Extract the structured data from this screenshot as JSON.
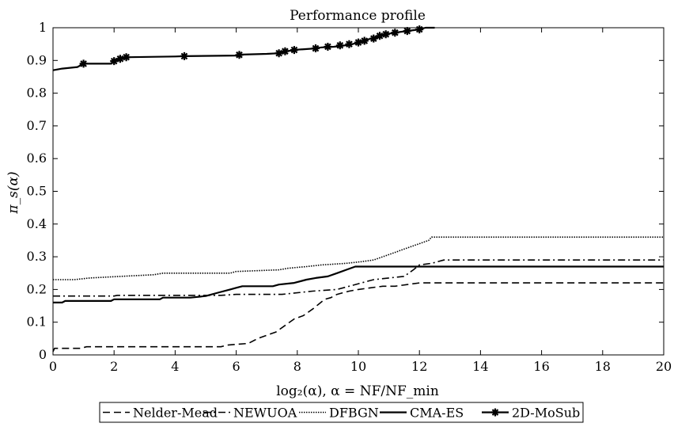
{
  "chart_data": {
    "type": "line",
    "title": "Performance profile",
    "ylabel": "π_s(α)",
    "xlabel": "log₂(α),    α = NF/NF_min",
    "xlim": [
      0,
      20
    ],
    "ylim": [
      0,
      1
    ],
    "xticks": [
      0,
      2,
      4,
      6,
      8,
      10,
      12,
      14,
      16,
      18,
      20
    ],
    "yticks": [
      0,
      0.1,
      0.2,
      0.3,
      0.4,
      0.5,
      0.6,
      0.7,
      0.8,
      0.9,
      1
    ],
    "grid": false,
    "legend": {
      "position": "bottom-outside",
      "orientation": "horizontal"
    },
    "series": [
      {
        "name": "Nelder-Mead",
        "style": "dashed",
        "points": [
          [
            0,
            0.01
          ],
          [
            0.05,
            0.02
          ],
          [
            0.9,
            0.02
          ],
          [
            1.1,
            0.025
          ],
          [
            3.5,
            0.025
          ],
          [
            5.5,
            0.025
          ],
          [
            5.7,
            0.03
          ],
          [
            6.4,
            0.035
          ],
          [
            6.7,
            0.05
          ],
          [
            7.0,
            0.06
          ],
          [
            7.3,
            0.07
          ],
          [
            7.6,
            0.09
          ],
          [
            7.9,
            0.11
          ],
          [
            8.2,
            0.12
          ],
          [
            8.5,
            0.14
          ],
          [
            8.7,
            0.155
          ],
          [
            8.9,
            0.17
          ],
          [
            9.1,
            0.175
          ],
          [
            9.3,
            0.185
          ],
          [
            9.5,
            0.19
          ],
          [
            9.7,
            0.195
          ],
          [
            10.0,
            0.2
          ],
          [
            10.4,
            0.205
          ],
          [
            10.8,
            0.21
          ],
          [
            11.2,
            0.21
          ],
          [
            11.6,
            0.215
          ],
          [
            12.0,
            0.22
          ],
          [
            20,
            0.22
          ]
        ]
      },
      {
        "name": "NEWUOA",
        "style": "dashdot",
        "points": [
          [
            0,
            0.18
          ],
          [
            2.0,
            0.18
          ],
          [
            2.1,
            0.182
          ],
          [
            5.5,
            0.182
          ],
          [
            6.0,
            0.185
          ],
          [
            7.5,
            0.185
          ],
          [
            8.5,
            0.195
          ],
          [
            9.3,
            0.2
          ],
          [
            9.7,
            0.21
          ],
          [
            10.1,
            0.22
          ],
          [
            10.5,
            0.23
          ],
          [
            11.0,
            0.235
          ],
          [
            11.5,
            0.24
          ],
          [
            11.8,
            0.26
          ],
          [
            12.0,
            0.275
          ],
          [
            12.4,
            0.28
          ],
          [
            12.8,
            0.29
          ],
          [
            20,
            0.29
          ]
        ]
      },
      {
        "name": "DFBGN",
        "style": "dotted",
        "points": [
          [
            0,
            0.23
          ],
          [
            0.7,
            0.23
          ],
          [
            1.2,
            0.235
          ],
          [
            2.2,
            0.24
          ],
          [
            3.3,
            0.245
          ],
          [
            3.6,
            0.25
          ],
          [
            5.8,
            0.25
          ],
          [
            6.0,
            0.255
          ],
          [
            7.4,
            0.26
          ],
          [
            7.7,
            0.265
          ],
          [
            8.3,
            0.27
          ],
          [
            8.8,
            0.275
          ],
          [
            9.6,
            0.28
          ],
          [
            10.1,
            0.285
          ],
          [
            10.5,
            0.29
          ],
          [
            10.8,
            0.3
          ],
          [
            11.1,
            0.31
          ],
          [
            11.4,
            0.32
          ],
          [
            11.7,
            0.33
          ],
          [
            12.0,
            0.34
          ],
          [
            12.3,
            0.35
          ],
          [
            12.4,
            0.36
          ],
          [
            20,
            0.36
          ]
        ]
      },
      {
        "name": "CMA-ES",
        "style": "solid",
        "points": [
          [
            0,
            0.16
          ],
          [
            0.3,
            0.16
          ],
          [
            0.4,
            0.165
          ],
          [
            1.9,
            0.165
          ],
          [
            2.0,
            0.17
          ],
          [
            3.5,
            0.17
          ],
          [
            3.6,
            0.175
          ],
          [
            4.5,
            0.175
          ],
          [
            5.0,
            0.18
          ],
          [
            5.4,
            0.19
          ],
          [
            5.8,
            0.2
          ],
          [
            6.0,
            0.205
          ],
          [
            6.2,
            0.21
          ],
          [
            7.2,
            0.21
          ],
          [
            7.4,
            0.215
          ],
          [
            7.9,
            0.22
          ],
          [
            8.3,
            0.23
          ],
          [
            8.6,
            0.235
          ],
          [
            9.0,
            0.24
          ],
          [
            9.3,
            0.25
          ],
          [
            9.6,
            0.26
          ],
          [
            9.9,
            0.27
          ],
          [
            20,
            0.27
          ]
        ]
      },
      {
        "name": "2D-MoSub",
        "style": "solid-markers",
        "points": [
          [
            0,
            0.87
          ],
          [
            0.3,
            0.875
          ],
          [
            0.8,
            0.88
          ],
          [
            1.0,
            0.89
          ],
          [
            1.9,
            0.89
          ],
          [
            2.0,
            0.9
          ],
          [
            2.3,
            0.905
          ],
          [
            2.5,
            0.91
          ],
          [
            4.0,
            0.912
          ],
          [
            4.3,
            0.913
          ],
          [
            6.0,
            0.915
          ],
          [
            6.2,
            0.918
          ],
          [
            7.0,
            0.92
          ],
          [
            7.4,
            0.922
          ],
          [
            7.6,
            0.928
          ],
          [
            7.8,
            0.93
          ],
          [
            8.0,
            0.933
          ],
          [
            8.5,
            0.936
          ],
          [
            8.8,
            0.94
          ],
          [
            9.2,
            0.942
          ],
          [
            9.5,
            0.945
          ],
          [
            9.8,
            0.95
          ],
          [
            10.0,
            0.955
          ],
          [
            10.2,
            0.962
          ],
          [
            10.5,
            0.968
          ],
          [
            10.7,
            0.975
          ],
          [
            10.9,
            0.98
          ],
          [
            11.2,
            0.985
          ],
          [
            11.6,
            0.99
          ],
          [
            12.0,
            0.995
          ],
          [
            12.2,
            1.0
          ],
          [
            12.5,
            1.0
          ]
        ],
        "markers": [
          [
            1.0,
            0.89
          ],
          [
            2.0,
            0.898
          ],
          [
            2.2,
            0.905
          ],
          [
            2.4,
            0.91
          ],
          [
            4.3,
            0.913
          ],
          [
            6.1,
            0.917
          ],
          [
            7.4,
            0.922
          ],
          [
            7.6,
            0.928
          ],
          [
            7.9,
            0.932
          ],
          [
            8.6,
            0.937
          ],
          [
            9.0,
            0.942
          ],
          [
            9.4,
            0.946
          ],
          [
            9.7,
            0.95
          ],
          [
            10.0,
            0.955
          ],
          [
            10.2,
            0.96
          ],
          [
            10.5,
            0.967
          ],
          [
            10.7,
            0.975
          ],
          [
            10.9,
            0.98
          ],
          [
            11.2,
            0.985
          ],
          [
            11.6,
            0.99
          ],
          [
            12.0,
            0.995
          ]
        ]
      }
    ]
  }
}
